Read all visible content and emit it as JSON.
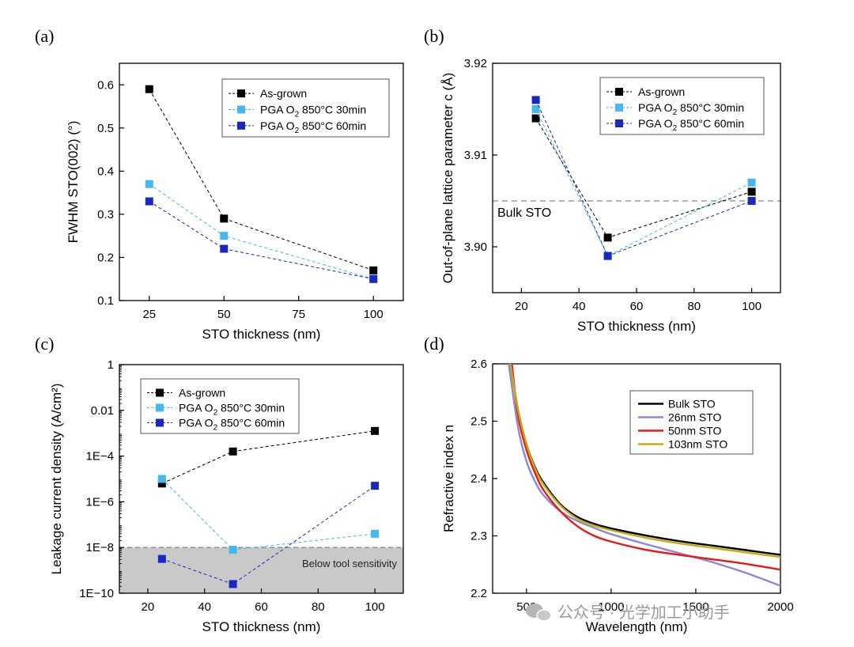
{
  "chart_data": [
    {
      "id": "a",
      "type": "scatter",
      "panel_label": "(a)",
      "xlabel": "STO thickness (nm)",
      "ylabel": "FWHM STO(002) (°)",
      "xlim": [
        15,
        110
      ],
      "ylim": [
        0.1,
        0.65
      ],
      "xticks": [
        25,
        50,
        75,
        100
      ],
      "xtick_labels": [
        "25",
        "50",
        "75",
        "100"
      ],
      "yticks": [
        0.1,
        0.2,
        0.3,
        0.4,
        0.5,
        0.6
      ],
      "ytick_labels": [
        "0.1",
        "0.2",
        "0.3",
        "0.4",
        "0.5",
        "0.6"
      ],
      "legend_position": "top-right",
      "series": [
        {
          "name": "As-grown",
          "legend_main": "As-grown",
          "color": "#000000",
          "x": [
            25,
            50,
            100
          ],
          "y": [
            0.59,
            0.29,
            0.17
          ]
        },
        {
          "name": "PGA O2 850°C 30min",
          "legend_main": "PGA O",
          "legend_sub": "2",
          "legend_rest": " 850°C 30min",
          "color": "#45b8ec",
          "x": [
            25,
            50,
            100
          ],
          "y": [
            0.37,
            0.25,
            0.15
          ]
        },
        {
          "name": "PGA O2 850°C 60min",
          "legend_main": "PGA O",
          "legend_sub": "2",
          "legend_rest": " 850°C 60min",
          "color": "#1a28c0",
          "x": [
            25,
            50,
            100
          ],
          "y": [
            0.33,
            0.22,
            0.15
          ]
        }
      ]
    },
    {
      "id": "b",
      "type": "scatter",
      "panel_label": "(b)",
      "xlabel": "STO thickness (nm)",
      "ylabel": "Out-of-plane lattice parameter c (Å)",
      "xlim": [
        10,
        110
      ],
      "ylim": [
        3.895,
        3.92
      ],
      "xticks": [
        20,
        40,
        60,
        80,
        100
      ],
      "xtick_labels": [
        "20",
        "40",
        "60",
        "80",
        "100"
      ],
      "yticks": [
        3.9,
        3.91,
        3.92
      ],
      "ytick_labels": [
        "3.90",
        "3.91",
        "3.92"
      ],
      "legend_position": "top-right",
      "reference_line": {
        "label": "Bulk STO",
        "y": 3.905
      },
      "series": [
        {
          "name": "As-grown",
          "legend_main": "As-grown",
          "color": "#000000",
          "x": [
            25,
            50,
            100
          ],
          "y": [
            3.914,
            3.901,
            3.906
          ]
        },
        {
          "name": "PGA O2 850°C 30min",
          "legend_main": "PGA O",
          "legend_sub": "2",
          "legend_rest": " 850°C 30min",
          "color": "#45b8ec",
          "x": [
            25,
            50,
            100
          ],
          "y": [
            3.915,
            3.899,
            3.907
          ]
        },
        {
          "name": "PGA O2 850°C 60min",
          "legend_main": "PGA O",
          "legend_sub": "2",
          "legend_rest": " 850°C 60min",
          "color": "#1a28c0",
          "x": [
            25,
            50,
            100
          ],
          "y": [
            3.916,
            3.899,
            3.905
          ]
        }
      ]
    },
    {
      "id": "c",
      "type": "scatter",
      "panel_label": "(c)",
      "xlabel": "STO thickness (nm)",
      "ylabel": "Leakage current density (A/cm²)",
      "yscale": "log",
      "xlim": [
        10,
        110
      ],
      "ylim_log10": [
        -10,
        0
      ],
      "xticks": [
        20,
        40,
        60,
        80,
        100
      ],
      "xtick_labels": [
        "20",
        "40",
        "60",
        "80",
        "100"
      ],
      "yticks_log10": [
        -10,
        -8,
        -6,
        -4,
        -2,
        0
      ],
      "ytick_labels": [
        "1E−10",
        "1E−8",
        "1E−6",
        "1E−4",
        "0.01",
        "1"
      ],
      "legend_position": "top-left",
      "shaded_region": {
        "label": "Below tool sensitivity",
        "below_log10": -8
      },
      "series": [
        {
          "name": "As-grown",
          "legend_main": "As-grown",
          "color": "#000000",
          "x": [
            25,
            50,
            100
          ],
          "y_log10": [
            -5.2,
            -3.8,
            -2.9
          ]
        },
        {
          "name": "PGA O2 850°C 30min",
          "legend_main": "PGA O",
          "legend_sub": "2",
          "legend_rest": " 850°C 30min",
          "color": "#45b8ec",
          "x": [
            25,
            50,
            100
          ],
          "y_log10": [
            -5.0,
            -8.1,
            -7.4
          ]
        },
        {
          "name": "PGA O2 850°C 60min",
          "legend_main": "PGA O",
          "legend_sub": "2",
          "legend_rest": " 850°C 60min",
          "color": "#1a28c0",
          "x": [
            25,
            50,
            100
          ],
          "y_log10": [
            -8.5,
            -9.6,
            -5.3
          ]
        }
      ]
    },
    {
      "id": "d",
      "type": "line",
      "panel_label": "(d)",
      "xlabel": "Wavelength (nm)",
      "ylabel": "Refractive index n",
      "xlim": [
        300,
        2000
      ],
      "ylim": [
        2.2,
        2.6
      ],
      "xticks": [
        500,
        1000,
        1500,
        2000
      ],
      "xtick_labels": [
        "500",
        "1000",
        "1500",
        "2000"
      ],
      "yticks": [
        2.2,
        2.3,
        2.4,
        2.5,
        2.6
      ],
      "ytick_labels": [
        "2.2",
        "2.3",
        "2.4",
        "2.5",
        "2.6"
      ],
      "legend_position": "top-right",
      "series": [
        {
          "name": "Bulk STO",
          "color": "#000000",
          "x": [
            400,
            450,
            500,
            550,
            600,
            700,
            800,
            900,
            1000,
            1200,
            1400,
            1600,
            1800,
            2000
          ],
          "y": [
            2.61,
            2.52,
            2.46,
            2.42,
            2.393,
            2.355,
            2.333,
            2.321,
            2.313,
            2.301,
            2.291,
            2.283,
            2.275,
            2.267
          ]
        },
        {
          "name": "26nm STO",
          "color": "#8e86d6",
          "x": [
            390,
            450,
            500,
            550,
            600,
            700,
            800,
            900,
            1000,
            1200,
            1400,
            1600,
            1800,
            2000
          ],
          "y": [
            2.61,
            2.49,
            2.43,
            2.395,
            2.371,
            2.343,
            2.326,
            2.314,
            2.303,
            2.286,
            2.27,
            2.254,
            2.235,
            2.213
          ]
        },
        {
          "name": "50nm STO",
          "color": "#e81818",
          "x": [
            410,
            450,
            500,
            550,
            600,
            700,
            800,
            900,
            1000,
            1200,
            1400,
            1600,
            1800,
            2000
          ],
          "y": [
            2.61,
            2.51,
            2.45,
            2.41,
            2.38,
            2.343,
            2.317,
            2.3,
            2.29,
            2.276,
            2.267,
            2.259,
            2.251,
            2.241
          ]
        },
        {
          "name": "103nm STO",
          "color": "#c4ad12",
          "x": [
            400,
            450,
            500,
            550,
            600,
            700,
            800,
            900,
            1000,
            1200,
            1400,
            1600,
            1800,
            2000
          ],
          "y": [
            2.61,
            2.52,
            2.46,
            2.418,
            2.39,
            2.353,
            2.33,
            2.318,
            2.31,
            2.297,
            2.287,
            2.279,
            2.271,
            2.263
          ]
        }
      ]
    }
  ],
  "watermark": "公众号 · 光学加工小助手"
}
